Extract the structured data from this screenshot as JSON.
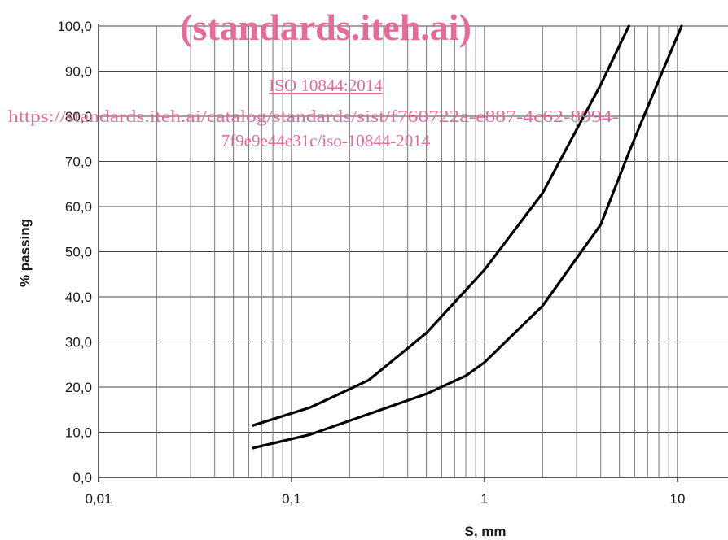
{
  "chart_data": {
    "type": "line",
    "title": "",
    "xlabel": "S, mm",
    "ylabel": "% passing",
    "xscale": "log",
    "xlim": [
      0.01,
      20
    ],
    "ylim": [
      0,
      100
    ],
    "grid": true,
    "legend": "none",
    "xticks": [
      "0,01",
      "0,1",
      "1",
      "10"
    ],
    "yticks": [
      "0,0",
      "10,0",
      "20,0",
      "30,0",
      "40,0",
      "50,0",
      "60,0",
      "70,0",
      "80,0",
      "90,0",
      "100,0"
    ],
    "series": [
      {
        "x": [
          0.063,
          0.125,
          0.25,
          0.5,
          1,
          2,
          4,
          5.6
        ],
        "values": [
          11.5,
          15.5,
          21.5,
          32,
          46,
          63,
          87,
          100
        ]
      },
      {
        "x": [
          0.063,
          0.125,
          0.25,
          0.5,
          0.8,
          1,
          2,
          4,
          5.6,
          8,
          10.5
        ],
        "values": [
          6.5,
          9.5,
          14,
          18.5,
          22.5,
          25.5,
          38,
          56,
          72,
          88,
          100
        ]
      }
    ]
  },
  "watermark": {
    "title": "(standards.iteh.ai)",
    "doc_id": "ISO 10844:2014",
    "url_line1": "https://standards.iteh.ai/catalog/standards/sist/f760722a-e887-4c62-8994-",
    "url_line2": "7f9e9e44e31c/iso-10844-2014",
    "color": "#e66a9a"
  }
}
